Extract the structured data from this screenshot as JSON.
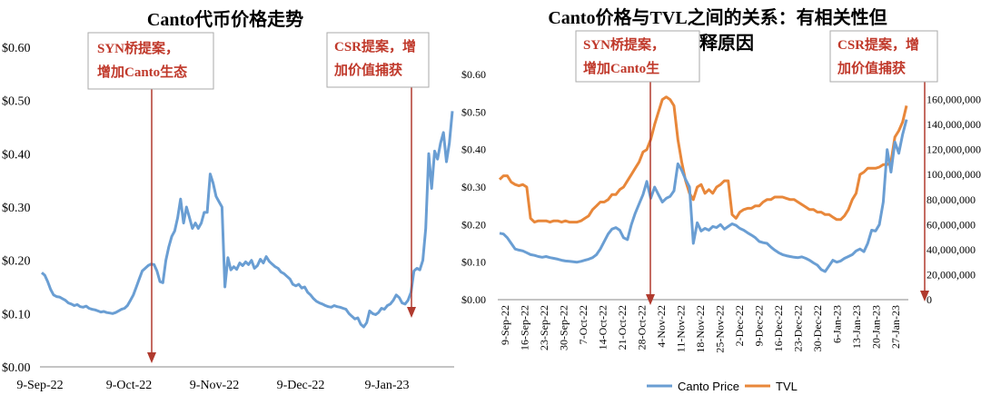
{
  "chart_data": [
    {
      "type": "line",
      "title": "Canto代币价格走势",
      "ylim": [
        0,
        0.6
      ],
      "y_ticks": [
        "$0.00",
        "$0.10",
        "$0.20",
        "$0.30",
        "$0.40",
        "$0.50",
        "$0.60"
      ],
      "x_ticks": [
        "9-Sep-22",
        "9-Oct-22",
        "9-Nov-22",
        "9-Dec-22",
        "9-Jan-23"
      ],
      "series": [
        {
          "name": "",
          "color": "#6a9ed3",
          "values": [
            0.177,
            0.172,
            0.16,
            0.145,
            0.135,
            0.132,
            0.131,
            0.128,
            0.125,
            0.12,
            0.118,
            0.115,
            0.117,
            0.113,
            0.112,
            0.114,
            0.11,
            0.108,
            0.107,
            0.105,
            0.103,
            0.104,
            0.102,
            0.101,
            0.1,
            0.102,
            0.105,
            0.108,
            0.11,
            0.115,
            0.125,
            0.135,
            0.15,
            0.165,
            0.18,
            0.185,
            0.19,
            0.193,
            0.192,
            0.18,
            0.16,
            0.158,
            0.2,
            0.225,
            0.245,
            0.255,
            0.28,
            0.315,
            0.27,
            0.3,
            0.28,
            0.26,
            0.27,
            0.26,
            0.27,
            0.29,
            0.29,
            0.362,
            0.345,
            0.32,
            0.31,
            0.3,
            0.15,
            0.205,
            0.182,
            0.188,
            0.183,
            0.195,
            0.19,
            0.197,
            0.192,
            0.2,
            0.185,
            0.19,
            0.202,
            0.195,
            0.207,
            0.198,
            0.193,
            0.188,
            0.185,
            0.178,
            0.175,
            0.17,
            0.165,
            0.155,
            0.152,
            0.155,
            0.148,
            0.15,
            0.14,
            0.135,
            0.128,
            0.123,
            0.12,
            0.118,
            0.115,
            0.113,
            0.112,
            0.115,
            0.113,
            0.112,
            0.11,
            0.108,
            0.1,
            0.095,
            0.09,
            0.092,
            0.08,
            0.075,
            0.083,
            0.105,
            0.1,
            0.098,
            0.102,
            0.11,
            0.108,
            0.115,
            0.118,
            0.125,
            0.135,
            0.13,
            0.12,
            0.118,
            0.125,
            0.14,
            0.18,
            0.185,
            0.182,
            0.2,
            0.26,
            0.4,
            0.335,
            0.405,
            0.39,
            0.42,
            0.44,
            0.385,
            0.42,
            0.48
          ]
        }
      ],
      "annotations": [
        {
          "lines": [
            "SYN桥提案，",
            "增加Canto生态"
          ]
        },
        {
          "lines": [
            "CSR提案，增",
            "加价值捕获"
          ]
        }
      ]
    },
    {
      "type": "line",
      "title_lines": [
        "Canto价格与TVL之间的关系：有相关性但",
        "解释原因"
      ],
      "ylim": [
        0,
        0.6
      ],
      "y2lim": [
        0,
        180000000
      ],
      "y_ticks": [
        "$0.00",
        "$0.10",
        "$0.20",
        "$0.30",
        "$0.40",
        "$0.50",
        "$0.60"
      ],
      "y2_ticks": [
        "0",
        "20,000,000",
        "40,000,000",
        "60,000,000",
        "80,000,000",
        "100,000,000",
        "120,000,000",
        "140,000,000",
        "160,000,000"
      ],
      "x_ticks": [
        "9-Sep-22",
        "16-Sep-22",
        "23-Sep-22",
        "30-Sep-22",
        "7-Oct-22",
        "14-Oct-22",
        "21-Oct-22",
        "28-Oct-22",
        "4-Nov-22",
        "11-Nov-22",
        "18-Nov-22",
        "25-Nov-22",
        "2-Dec-22",
        "9-Dec-22",
        "16-Dec-22",
        "23-Dec-22",
        "30-Dec-22",
        "6-Jan-23",
        "13-Jan-23",
        "20-Jan-23",
        "27-Jan-23"
      ],
      "series": [
        {
          "name": "Canto Price",
          "color": "#6a9ed3",
          "values": [
            0.177,
            0.175,
            0.165,
            0.15,
            0.135,
            0.132,
            0.13,
            0.125,
            0.12,
            0.118,
            0.115,
            0.113,
            0.115,
            0.112,
            0.11,
            0.108,
            0.105,
            0.103,
            0.102,
            0.101,
            0.1,
            0.102,
            0.105,
            0.108,
            0.112,
            0.12,
            0.135,
            0.155,
            0.175,
            0.188,
            0.192,
            0.185,
            0.165,
            0.16,
            0.2,
            0.23,
            0.255,
            0.28,
            0.315,
            0.27,
            0.3,
            0.28,
            0.26,
            0.27,
            0.275,
            0.29,
            0.362,
            0.345,
            0.32,
            0.3,
            0.15,
            0.205,
            0.183,
            0.19,
            0.185,
            0.195,
            0.192,
            0.2,
            0.188,
            0.195,
            0.202,
            0.198,
            0.19,
            0.185,
            0.178,
            0.172,
            0.165,
            0.155,
            0.152,
            0.15,
            0.14,
            0.132,
            0.125,
            0.12,
            0.117,
            0.115,
            0.113,
            0.112,
            0.114,
            0.11,
            0.105,
            0.098,
            0.092,
            0.08,
            0.075,
            0.09,
            0.105,
            0.1,
            0.103,
            0.11,
            0.115,
            0.12,
            0.13,
            0.135,
            0.128,
            0.15,
            0.185,
            0.183,
            0.2,
            0.26,
            0.4,
            0.34,
            0.42,
            0.39,
            0.44,
            0.48
          ]
        },
        {
          "name": "TVL",
          "color": "#e8873a",
          "values": [
            96000000,
            99000000,
            99000000,
            94000000,
            92000000,
            91000000,
            92000000,
            90000000,
            65000000,
            62000000,
            63000000,
            63000000,
            63000000,
            62000000,
            63000000,
            63000000,
            62000000,
            63000000,
            62000000,
            62000000,
            62000000,
            63000000,
            65000000,
            67000000,
            72000000,
            75000000,
            78000000,
            78000000,
            80000000,
            84000000,
            84000000,
            88000000,
            90000000,
            95000000,
            100000000,
            105000000,
            110000000,
            118000000,
            120000000,
            128000000,
            140000000,
            150000000,
            160000000,
            162000000,
            160000000,
            155000000,
            128000000,
            110000000,
            95000000,
            85000000,
            80000000,
            90000000,
            92000000,
            85000000,
            88000000,
            85000000,
            90000000,
            92000000,
            95000000,
            95000000,
            68000000,
            65000000,
            70000000,
            72000000,
            73000000,
            73000000,
            75000000,
            75000000,
            78000000,
            80000000,
            80000000,
            82000000,
            82000000,
            82000000,
            81000000,
            80000000,
            80000000,
            78000000,
            76000000,
            74000000,
            72000000,
            72000000,
            70000000,
            70000000,
            68000000,
            68000000,
            66000000,
            64000000,
            64000000,
            67000000,
            72000000,
            80000000,
            85000000,
            100000000,
            102000000,
            105000000,
            105000000,
            105000000,
            106000000,
            108000000,
            108000000,
            110000000,
            130000000,
            135000000,
            142000000,
            155000000
          ]
        }
      ],
      "annotations": [
        {
          "lines": [
            "SYN桥提案，",
            "增加Canto生"
          ]
        },
        {
          "lines": [
            "CSR提案，增",
            "加价值捕获"
          ]
        }
      ],
      "legend_position": "bottom"
    }
  ]
}
